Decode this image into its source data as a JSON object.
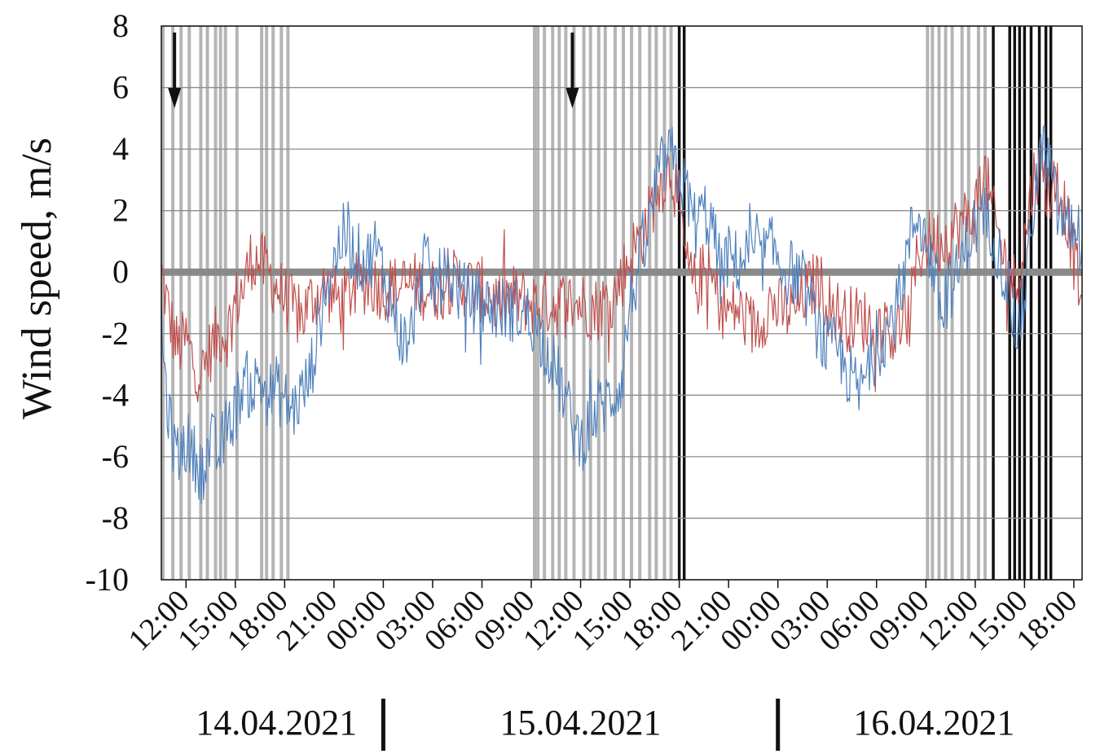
{
  "chart_data": {
    "type": "line",
    "title": "",
    "xlabel": "",
    "ylabel": "Wind speed, m/s",
    "ylim": [
      -10,
      8
    ],
    "yticks": [
      "8",
      "6",
      "4",
      "2",
      "0",
      "-2",
      "-4",
      "-6",
      "-8",
      "-10"
    ],
    "xlim_hours": [
      10.5,
      66.5
    ],
    "xticks": [
      {
        "label": "12:00",
        "hour": 12
      },
      {
        "label": "15:00",
        "hour": 15
      },
      {
        "label": "18:00",
        "hour": 18
      },
      {
        "label": "21:00",
        "hour": 21
      },
      {
        "label": "00:00",
        "hour": 24
      },
      {
        "label": "03:00",
        "hour": 27
      },
      {
        "label": "06:00",
        "hour": 30
      },
      {
        "label": "09:00",
        "hour": 33
      },
      {
        "label": "12:00",
        "hour": 36
      },
      {
        "label": "15:00",
        "hour": 39
      },
      {
        "label": "18:00",
        "hour": 42
      },
      {
        "label": "21:00",
        "hour": 45
      },
      {
        "label": "00:00",
        "hour": 48
      },
      {
        "label": "03:00",
        "hour": 51
      },
      {
        "label": "06:00",
        "hour": 54
      },
      {
        "label": "09:00",
        "hour": 57
      },
      {
        "label": "12:00",
        "hour": 60
      },
      {
        "label": "15:00",
        "hour": 63
      },
      {
        "label": "18:00",
        "hour": 66
      }
    ],
    "dates": [
      {
        "label": "14.04.2021",
        "center_hour": 17.5
      },
      {
        "label": "15.04.2021",
        "center_hour": 36
      },
      {
        "label": "16.04.2021",
        "center_hour": 57.5
      }
    ],
    "day_separators_hours": [
      24,
      48
    ],
    "grid": true,
    "zero_line": true,
    "series": [
      {
        "color": "#c0504d",
        "values": [
          [
            10.5,
            0
          ],
          [
            11,
            -1.5
          ],
          [
            11.5,
            -2.5
          ],
          [
            12,
            -2.2
          ],
          [
            12.5,
            -3
          ],
          [
            13,
            -3.3
          ],
          [
            13.5,
            -2.5
          ],
          [
            14,
            -2
          ],
          [
            14.5,
            -2
          ],
          [
            15,
            -1
          ],
          [
            15.5,
            -0.5
          ],
          [
            16,
            0.5
          ],
          [
            16.5,
            0.3
          ],
          [
            17,
            0
          ],
          [
            17.5,
            -0.5
          ],
          [
            18,
            -0.8
          ],
          [
            18.5,
            -1.2
          ],
          [
            19,
            -1.5
          ],
          [
            19.5,
            -1
          ],
          [
            20,
            -0.7
          ],
          [
            20.5,
            -0.5
          ],
          [
            21,
            -0.8
          ],
          [
            21.5,
            -1
          ],
          [
            22,
            -0.6
          ],
          [
            22.5,
            -0.4
          ],
          [
            23,
            -0.3
          ],
          [
            24,
            -0.5
          ],
          [
            25,
            -0.5
          ],
          [
            26,
            -0.4
          ],
          [
            27,
            -0.6
          ],
          [
            28,
            -0.3
          ],
          [
            29,
            -0.4
          ],
          [
            30,
            -0.6
          ],
          [
            31,
            -1
          ],
          [
            32,
            -0.8
          ],
          [
            33,
            -1
          ],
          [
            34,
            -1
          ],
          [
            35,
            -1
          ],
          [
            36,
            -1
          ],
          [
            37,
            -1.2
          ],
          [
            38,
            -0.8
          ],
          [
            39,
            0.5
          ],
          [
            40,
            1.5
          ],
          [
            40.5,
            2.5
          ],
          [
            41,
            3
          ],
          [
            41.5,
            3.5
          ],
          [
            42,
            2
          ],
          [
            42.5,
            0
          ],
          [
            43,
            -0.5
          ],
          [
            43.5,
            0
          ],
          [
            44,
            -0.3
          ],
          [
            44.5,
            -1
          ],
          [
            45,
            -1.3
          ],
          [
            45.5,
            -1.2
          ],
          [
            46,
            -1.5
          ],
          [
            46.5,
            -1.8
          ],
          [
            47,
            -1.5
          ],
          [
            47.5,
            -1
          ],
          [
            48,
            -1.2
          ],
          [
            48.5,
            -1.3
          ],
          [
            49,
            -1.2
          ],
          [
            49.5,
            -0.8
          ],
          [
            50,
            -0.5
          ],
          [
            50.5,
            -0.3
          ],
          [
            51,
            -1
          ],
          [
            51.5,
            -1.2
          ],
          [
            52,
            -1.5
          ],
          [
            53,
            -1.5
          ],
          [
            54,
            -1.8
          ],
          [
            55,
            -2
          ],
          [
            56,
            -1.5
          ],
          [
            56.5,
            0.5
          ],
          [
            57,
            1
          ],
          [
            58,
            1
          ],
          [
            59,
            1.5
          ],
          [
            60,
            2
          ],
          [
            60.5,
            3.5
          ],
          [
            61,
            2
          ],
          [
            61.5,
            1
          ],
          [
            62,
            0
          ],
          [
            62.5,
            -0.5
          ],
          [
            63,
            1
          ],
          [
            63.5,
            3
          ],
          [
            64,
            3.5
          ],
          [
            64.5,
            2.5
          ],
          [
            65,
            3
          ],
          [
            65.5,
            2
          ],
          [
            66,
            0.5
          ],
          [
            66.5,
            -0.8
          ]
        ]
      },
      {
        "color": "#4f81bd",
        "values": [
          [
            10.5,
            -2
          ],
          [
            11,
            -5
          ],
          [
            11.5,
            -6
          ],
          [
            12,
            -5.5
          ],
          [
            12.5,
            -6
          ],
          [
            13,
            -6.5
          ],
          [
            13.5,
            -5.5
          ],
          [
            14,
            -6
          ],
          [
            14.5,
            -5
          ],
          [
            15,
            -4.5
          ],
          [
            15.5,
            -3.5
          ],
          [
            16,
            -3.8
          ],
          [
            16.5,
            -3.5
          ],
          [
            17,
            -4
          ],
          [
            17.5,
            -3.8
          ],
          [
            18,
            -4.2
          ],
          [
            18.5,
            -4.5
          ],
          [
            19,
            -4
          ],
          [
            19.5,
            -3.5
          ],
          [
            20,
            -2
          ],
          [
            20.5,
            -0.5
          ],
          [
            21,
            0.3
          ],
          [
            21.5,
            1.2
          ],
          [
            22,
            0.8
          ],
          [
            22.5,
            0.5
          ],
          [
            23,
            0.3
          ],
          [
            23.5,
            0.8
          ],
          [
            24,
            0
          ],
          [
            24.5,
            -1
          ],
          [
            25,
            -2
          ],
          [
            25.5,
            -2.5
          ],
          [
            26,
            -1
          ],
          [
            26.5,
            0.5
          ],
          [
            27,
            -0.5
          ],
          [
            27.5,
            -0.3
          ],
          [
            28,
            0
          ],
          [
            28.5,
            -0.5
          ],
          [
            29,
            -0.8
          ],
          [
            30,
            -1
          ],
          [
            31,
            -1.2
          ],
          [
            32,
            -1.2
          ],
          [
            33,
            -1.5
          ],
          [
            34,
            -2.5
          ],
          [
            35,
            -4
          ],
          [
            35.5,
            -5
          ],
          [
            36,
            -5.5
          ],
          [
            36.5,
            -5
          ],
          [
            37,
            -4.5
          ],
          [
            38,
            -4
          ],
          [
            38.5,
            -3.5
          ],
          [
            39,
            -1
          ],
          [
            39.5,
            0
          ],
          [
            40,
            1
          ],
          [
            40.5,
            2.5
          ],
          [
            41,
            3.5
          ],
          [
            41.5,
            3.8
          ],
          [
            42,
            3
          ],
          [
            42.5,
            2.5
          ],
          [
            43,
            1.5
          ],
          [
            43.5,
            2
          ],
          [
            44,
            1.5
          ],
          [
            44.5,
            0
          ],
          [
            45,
            0.5
          ],
          [
            45.5,
            0.3
          ],
          [
            46,
            0.5
          ],
          [
            46.5,
            0.6
          ],
          [
            47,
            0.4
          ],
          [
            47.5,
            0.8
          ],
          [
            48,
            0.5
          ],
          [
            48.5,
            0
          ],
          [
            49,
            0
          ],
          [
            49.5,
            -0.5
          ],
          [
            50,
            -1
          ],
          [
            50.5,
            -2
          ],
          [
            51,
            -2.5
          ],
          [
            51.5,
            -2.5
          ],
          [
            52,
            -3
          ],
          [
            52.5,
            -3.5
          ],
          [
            53,
            -4
          ],
          [
            53.5,
            -3
          ],
          [
            54,
            -2.5
          ],
          [
            54.5,
            -2
          ],
          [
            55,
            -1.5
          ],
          [
            55.5,
            -0.5
          ],
          [
            56,
            1
          ],
          [
            56.5,
            2
          ],
          [
            57,
            1
          ],
          [
            57.5,
            0
          ],
          [
            58,
            -1.5
          ],
          [
            58.5,
            -0.5
          ],
          [
            59,
            0
          ],
          [
            59.5,
            1
          ],
          [
            60,
            1.5
          ],
          [
            60.5,
            1.8
          ],
          [
            61,
            1.5
          ],
          [
            61.5,
            0.5
          ],
          [
            62,
            -0.5
          ],
          [
            62.5,
            -2
          ],
          [
            63,
            -1
          ],
          [
            63.5,
            2
          ],
          [
            64,
            4
          ],
          [
            64.5,
            3.5
          ],
          [
            65,
            2
          ],
          [
            65.5,
            1.5
          ],
          [
            66,
            1.5
          ],
          [
            66.5,
            1
          ]
        ]
      }
    ],
    "vertical_event_lines": {
      "gray": [
        10.6,
        11.2,
        11.7,
        12.2,
        12.9,
        13.3,
        13.8,
        14.1,
        14.4,
        15.1,
        16.6,
        16.9,
        17.3,
        17.8,
        18.2,
        33.2,
        33.4,
        33.8,
        34.3,
        34.7,
        35.1,
        35.6,
        36.2,
        36.6,
        37.1,
        37.5,
        38.1,
        38.6,
        39.1,
        39.6,
        40.2,
        40.6,
        41.1,
        41.5,
        57.1,
        57.4,
        57.8,
        58.2,
        58.6,
        59.2,
        59.6,
        60.2,
        60.6
      ],
      "black": [
        42.0,
        42.3,
        61.1,
        62.1,
        62.4,
        62.7,
        63.0,
        63.4,
        63.9,
        64.3,
        64.6
      ]
    },
    "arrows_hours": [
      11.3,
      35.5
    ]
  }
}
